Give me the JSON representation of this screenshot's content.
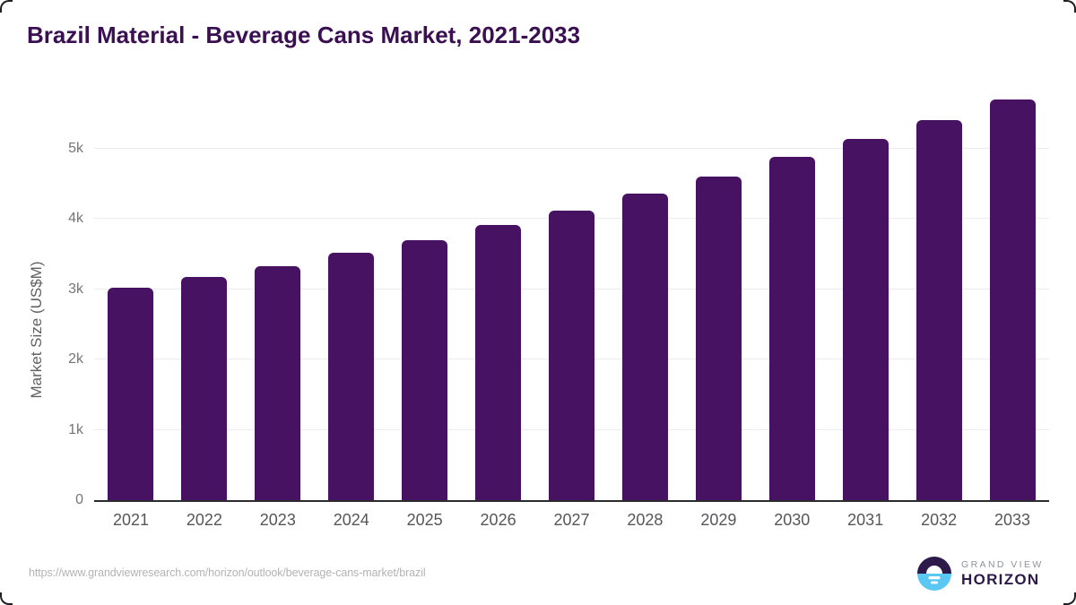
{
  "title": "Brazil Material - Beverage Cans Market, 2021-2033",
  "chart_data": {
    "type": "bar",
    "title": "Brazil Material - Beverage Cans Market, 2021-2033",
    "categories": [
      "2021",
      "2022",
      "2023",
      "2024",
      "2025",
      "2026",
      "2027",
      "2028",
      "2029",
      "2030",
      "2031",
      "2032",
      "2033"
    ],
    "values": [
      3020,
      3175,
      3330,
      3515,
      3700,
      3915,
      4120,
      4360,
      4600,
      4880,
      5140,
      5410,
      5700
    ],
    "xlabel": "",
    "ylabel": "Market Size (US$M)",
    "ylim": [
      0,
      5800
    ],
    "yticks": [
      0,
      1000,
      2000,
      3000,
      4000,
      5000
    ],
    "ytick_labels": [
      "0",
      "1k",
      "2k",
      "3k",
      "4k",
      "5k"
    ],
    "grid": "horizontal",
    "legend": "none",
    "bar_color": "#481263"
  },
  "footer": {
    "source_url": "https://www.grandviewresearch.com/horizon/outlook/beverage-cans-market/brazil",
    "logo": {
      "line1": "GRAND VIEW",
      "line2": "HORIZON"
    }
  },
  "colors": {
    "bar": "#481263",
    "title_text": "#3b1053",
    "tick_label": "#757575",
    "axis_line": "#2b2b2e",
    "gridline": "#ececec",
    "url_text": "#b3b3b3",
    "logo_dark": "#2d1a4a",
    "logo_blue": "#5ac8f2",
    "logo_gray": "#8d929b"
  }
}
